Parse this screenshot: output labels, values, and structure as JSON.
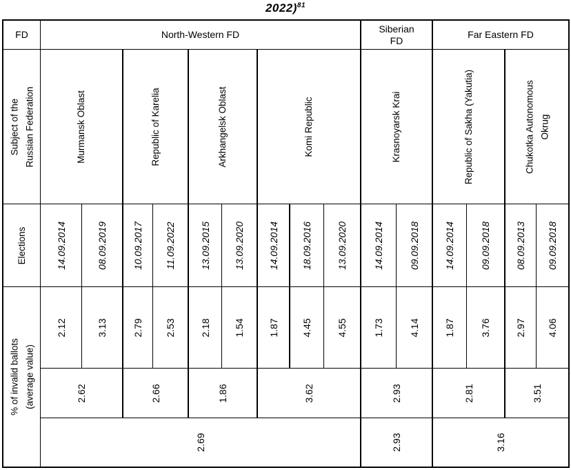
{
  "title": {
    "text": "2022)",
    "footnote": "81"
  },
  "table_headers": {
    "fd": "FD",
    "subject": "Subject of the\nRussian Federation",
    "elections": "Elections",
    "invalid_ballots": "% of invalid ballots\n(average value)"
  },
  "districts": [
    {
      "name": "North-Western FD",
      "average": "2.69"
    },
    {
      "name": "Siberian\nFD",
      "average": "2.93"
    },
    {
      "name": "Far Eastern FD",
      "average": "3.16"
    }
  ],
  "subjects": [
    {
      "name": "Murmansk Oblast",
      "district": "North-Western FD",
      "average": "2.62",
      "elections": [
        {
          "date": "14.09.2014",
          "invalid_pct": "2.12"
        },
        {
          "date": "08.09.2019",
          "invalid_pct": "3.13"
        }
      ]
    },
    {
      "name": "Republic of Karelia",
      "district": "North-Western FD",
      "average": "2.66",
      "elections": [
        {
          "date": "10.09.2017",
          "invalid_pct": "2.79"
        },
        {
          "date": "11.09.2022",
          "invalid_pct": "2.53"
        }
      ]
    },
    {
      "name": "Arkhangelsk Oblast",
      "district": "North-Western FD",
      "average": "1.86",
      "elections": [
        {
          "date": "13.09.2015",
          "invalid_pct": "2.18"
        },
        {
          "date": "13.09.2020",
          "invalid_pct": "1.54"
        }
      ]
    },
    {
      "name": "Komi Republic",
      "district": "North-Western FD",
      "average": "3.62",
      "elections": [
        {
          "date": "14.09.2014",
          "invalid_pct": "1.87"
        },
        {
          "date": "18.09.2016",
          "invalid_pct": "4.45"
        },
        {
          "date": "13.09.2020",
          "invalid_pct": "4.55"
        }
      ]
    },
    {
      "name": "Krasnoyarsk Krai",
      "district": "Siberian FD",
      "average": "2.93",
      "elections": [
        {
          "date": "14.09.2014",
          "invalid_pct": "1.73"
        },
        {
          "date": "09.09.2018",
          "invalid_pct": "4.14"
        }
      ]
    },
    {
      "name": "Republic of Sakha (Yakutia)",
      "district": "Far Eastern FD",
      "average": "2.81",
      "elections": [
        {
          "date": "14.09.2014",
          "invalid_pct": "1.87"
        },
        {
          "date": "09.09.2018",
          "invalid_pct": "3.76"
        }
      ]
    },
    {
      "name": "Chukotka Autonomous\nOkrug",
      "district": "Far Eastern FD",
      "average": "3.51",
      "elections": [
        {
          "date": "08.09.2013",
          "invalid_pct": "2.97"
        },
        {
          "date": "09.09.2018",
          "invalid_pct": "4.06"
        }
      ]
    }
  ]
}
